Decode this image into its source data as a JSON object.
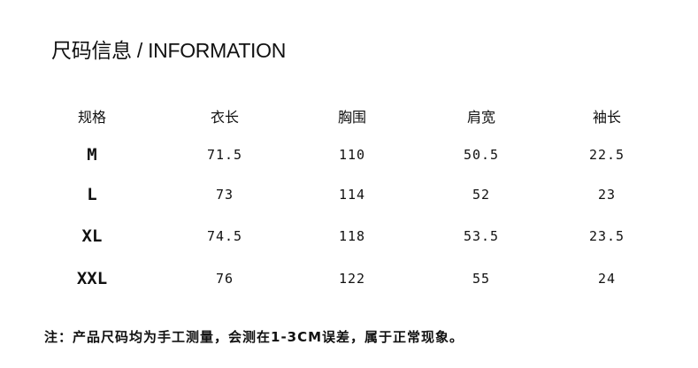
{
  "title": "尺码信息 / INFORMATION",
  "table": {
    "headers": [
      "规格",
      "衣长",
      "胸围",
      "肩宽",
      "袖长"
    ],
    "rows": [
      [
        "M",
        "71.5",
        "110",
        "50.5",
        "22.5"
      ],
      [
        "L",
        "73",
        "114",
        "52",
        "23"
      ],
      [
        "XL",
        "74.5",
        "118",
        "53.5",
        "23.5"
      ],
      [
        "XXL",
        "76",
        "122",
        "55",
        "24"
      ]
    ]
  },
  "note": "注：产品尺码均为手工测量，会测在1-3CM误差，属于正常现象。"
}
